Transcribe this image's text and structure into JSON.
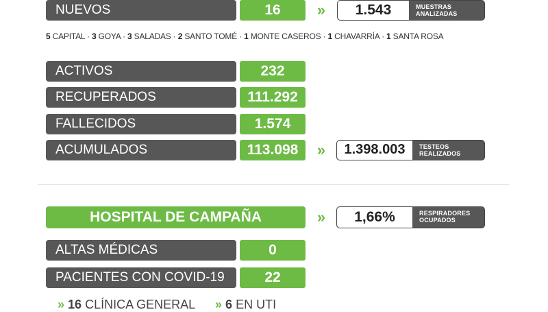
{
  "nuevos": {
    "label": "NUEVOS",
    "value": "16",
    "arrow": "»",
    "samples_value": "1.543",
    "samples_caption_1": "MUESTRAS",
    "samples_caption_2": "ANALIZADAS"
  },
  "breakdown": [
    {
      "n": "5",
      "place": "CAPITAL"
    },
    {
      "n": "3",
      "place": "GOYA"
    },
    {
      "n": "3",
      "place": "SALADAS"
    },
    {
      "n": "2",
      "place": "SANTO TOMÉ"
    },
    {
      "n": "1",
      "place": "MONTE CASEROS"
    },
    {
      "n": "1",
      "place": "CHAVARRÍA"
    },
    {
      "n": "1",
      "place": "SANTA ROSA"
    }
  ],
  "stats": [
    {
      "label": "ACTIVOS",
      "value": "232"
    },
    {
      "label": "RECUPERADOS",
      "value": "111.292"
    },
    {
      "label": "FALLECIDOS",
      "value": "1.574"
    },
    {
      "label": "ACUMULADOS",
      "value": "113.098"
    }
  ],
  "tests": {
    "arrow": "»",
    "value": "1.398.003",
    "caption_1": "TESTEOS",
    "caption_2": "REALIZADOS"
  },
  "hospital": {
    "title": "HOSPITAL DE CAMPAÑA",
    "arrow": "»",
    "resp_value": "1,66%",
    "resp_caption_1": "RESPIRADORES",
    "resp_caption_2": "OCUPADOS"
  },
  "hospital_stats": [
    {
      "label": "ALTAS MÉDICAS",
      "value": "0"
    },
    {
      "label": "PACIENTES CON COVID-19",
      "value": "22"
    }
  ],
  "bottom": [
    {
      "arrow": "»",
      "n": "16",
      "text": "CLÍNICA GENERAL"
    },
    {
      "arrow": "»",
      "n": "6",
      "text": "EN UTI"
    }
  ],
  "colors": {
    "green": "#6dbb45",
    "gray": "#575757"
  }
}
